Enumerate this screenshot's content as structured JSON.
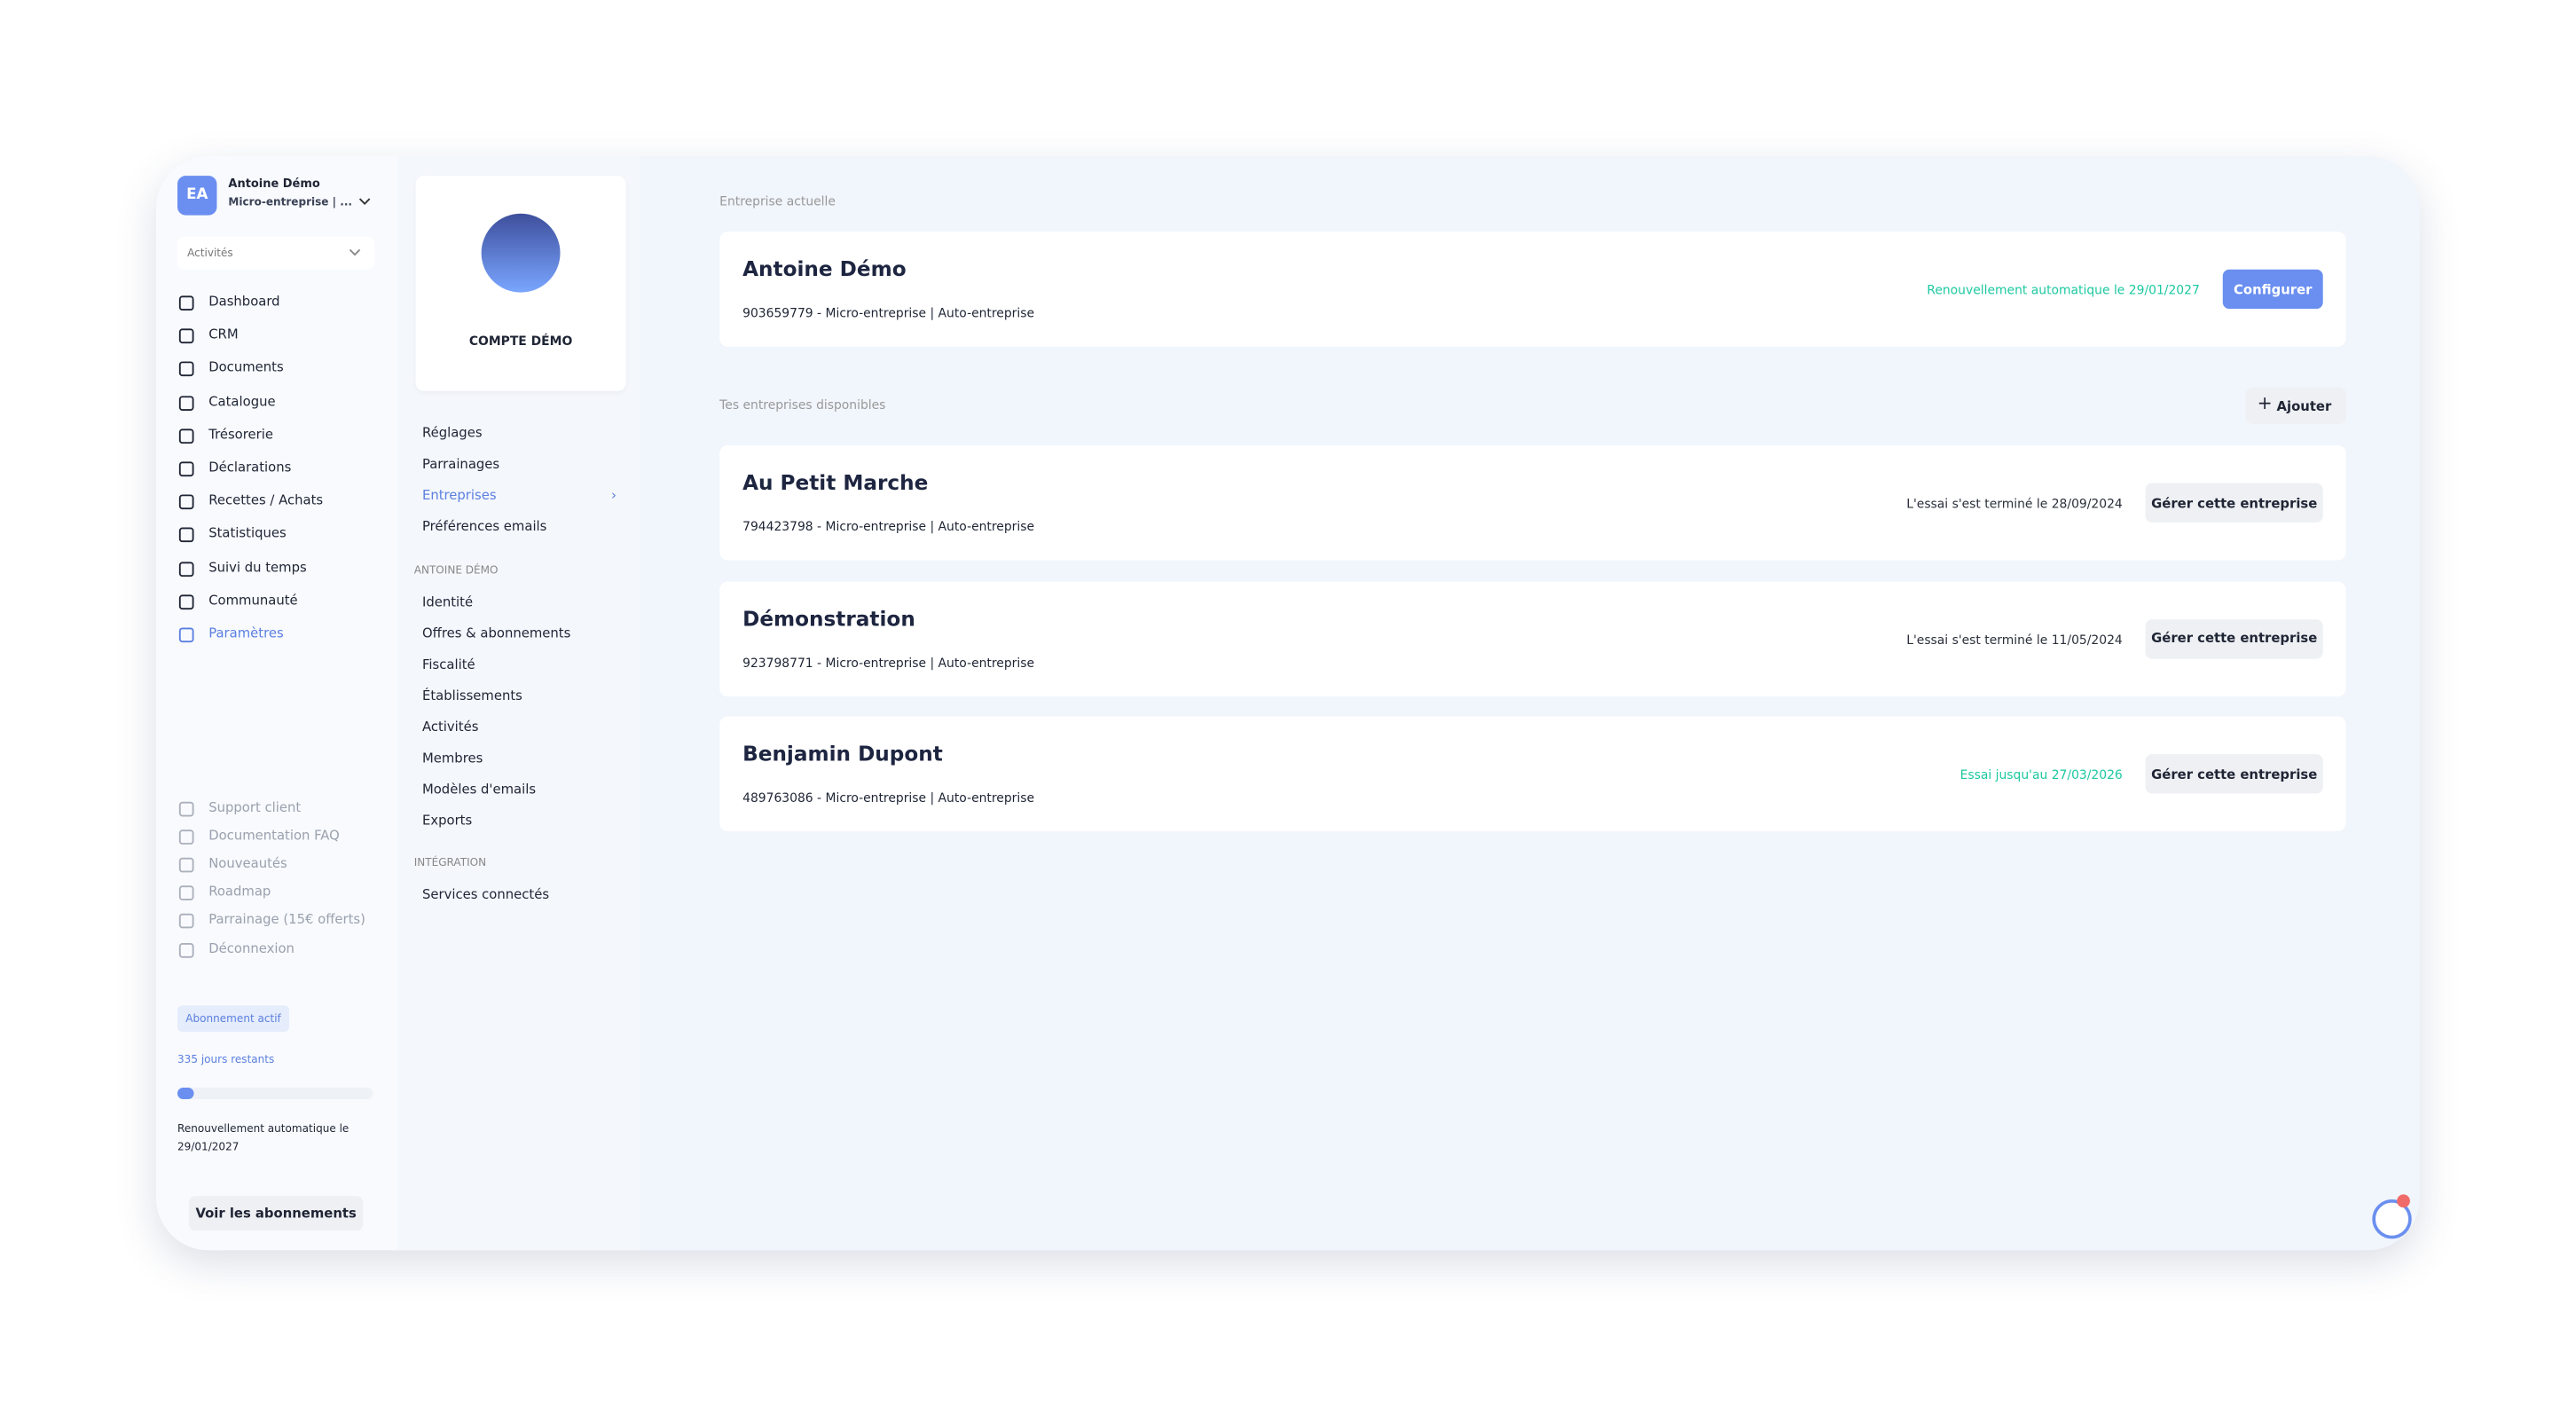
{
  "account": {
    "initials": "EA",
    "name": "Antoine Démo",
    "company": "Micro-entreprise | ..."
  },
  "activity_select": "Activités",
  "nav": [
    "Dashboard",
    "CRM",
    "Documents",
    "Catalogue",
    "Trésorerie",
    "Déclarations",
    "Recettes / Achats",
    "Statistiques",
    "Suivi du temps",
    "Communauté",
    "Paramètres"
  ],
  "nav_active": 10,
  "help_links": [
    "Support client",
    "Documentation FAQ",
    "Nouveautés",
    "Roadmap",
    "Parrainage (15€ offerts)",
    "Déconnexion"
  ],
  "subscription": {
    "badge": "Abonnement actif",
    "days_left": "335 jours restants",
    "renewal": "Renouvellement automatique le 29/01/2027",
    "button": "Voir les abonnements"
  },
  "settings": {
    "account_label": "COMPTE DÉMO",
    "menu": [
      "Réglages",
      "Parrainages",
      "Entreprises",
      "Préférences emails"
    ],
    "menu_active": 2,
    "sections": [
      {
        "title": "ANTOINE DÉMO",
        "items": [
          "Identité",
          "Offres & abonnements",
          "Fiscalité",
          "Établissements",
          "Activités",
          "Membres",
          "Modèles d'emails",
          "Exports"
        ]
      },
      {
        "title": "INTÉGRATION",
        "items": [
          "Services connectés"
        ]
      }
    ]
  },
  "current": {
    "label": "Entreprise actuelle",
    "name": "Antoine Démo",
    "details": "903659779 - Micro-entreprise | Auto-entreprise",
    "status": "Renouvellement automatique le 29/01/2027",
    "status_color": "#1cc8a0",
    "button": "Configurer"
  },
  "available": {
    "label": "Tes entreprises disponibles",
    "add_button": "Ajouter",
    "companies": [
      {
        "name": "Au Petit Marche",
        "details": "794423798 - Micro-entreprise | Auto-entreprise",
        "status": "L'essai s'est terminé le 28/09/2024",
        "status_color": "#2b2f3a",
        "button": "Gérer cette entreprise"
      },
      {
        "name": "Démonstration",
        "details": "923798771 - Micro-entreprise | Auto-entreprise",
        "status": "L'essai s'est terminé le 11/05/2024",
        "status_color": "#2b2f3a",
        "button": "Gérer cette entreprise"
      },
      {
        "name": "Benjamin Dupont",
        "details": "489763086 - Micro-entreprise | Auto-entreprise",
        "status": "Essai jusqu'au 27/03/2026",
        "status_color": "#1cc8a0",
        "button": "Gérer cette entreprise"
      }
    ]
  }
}
